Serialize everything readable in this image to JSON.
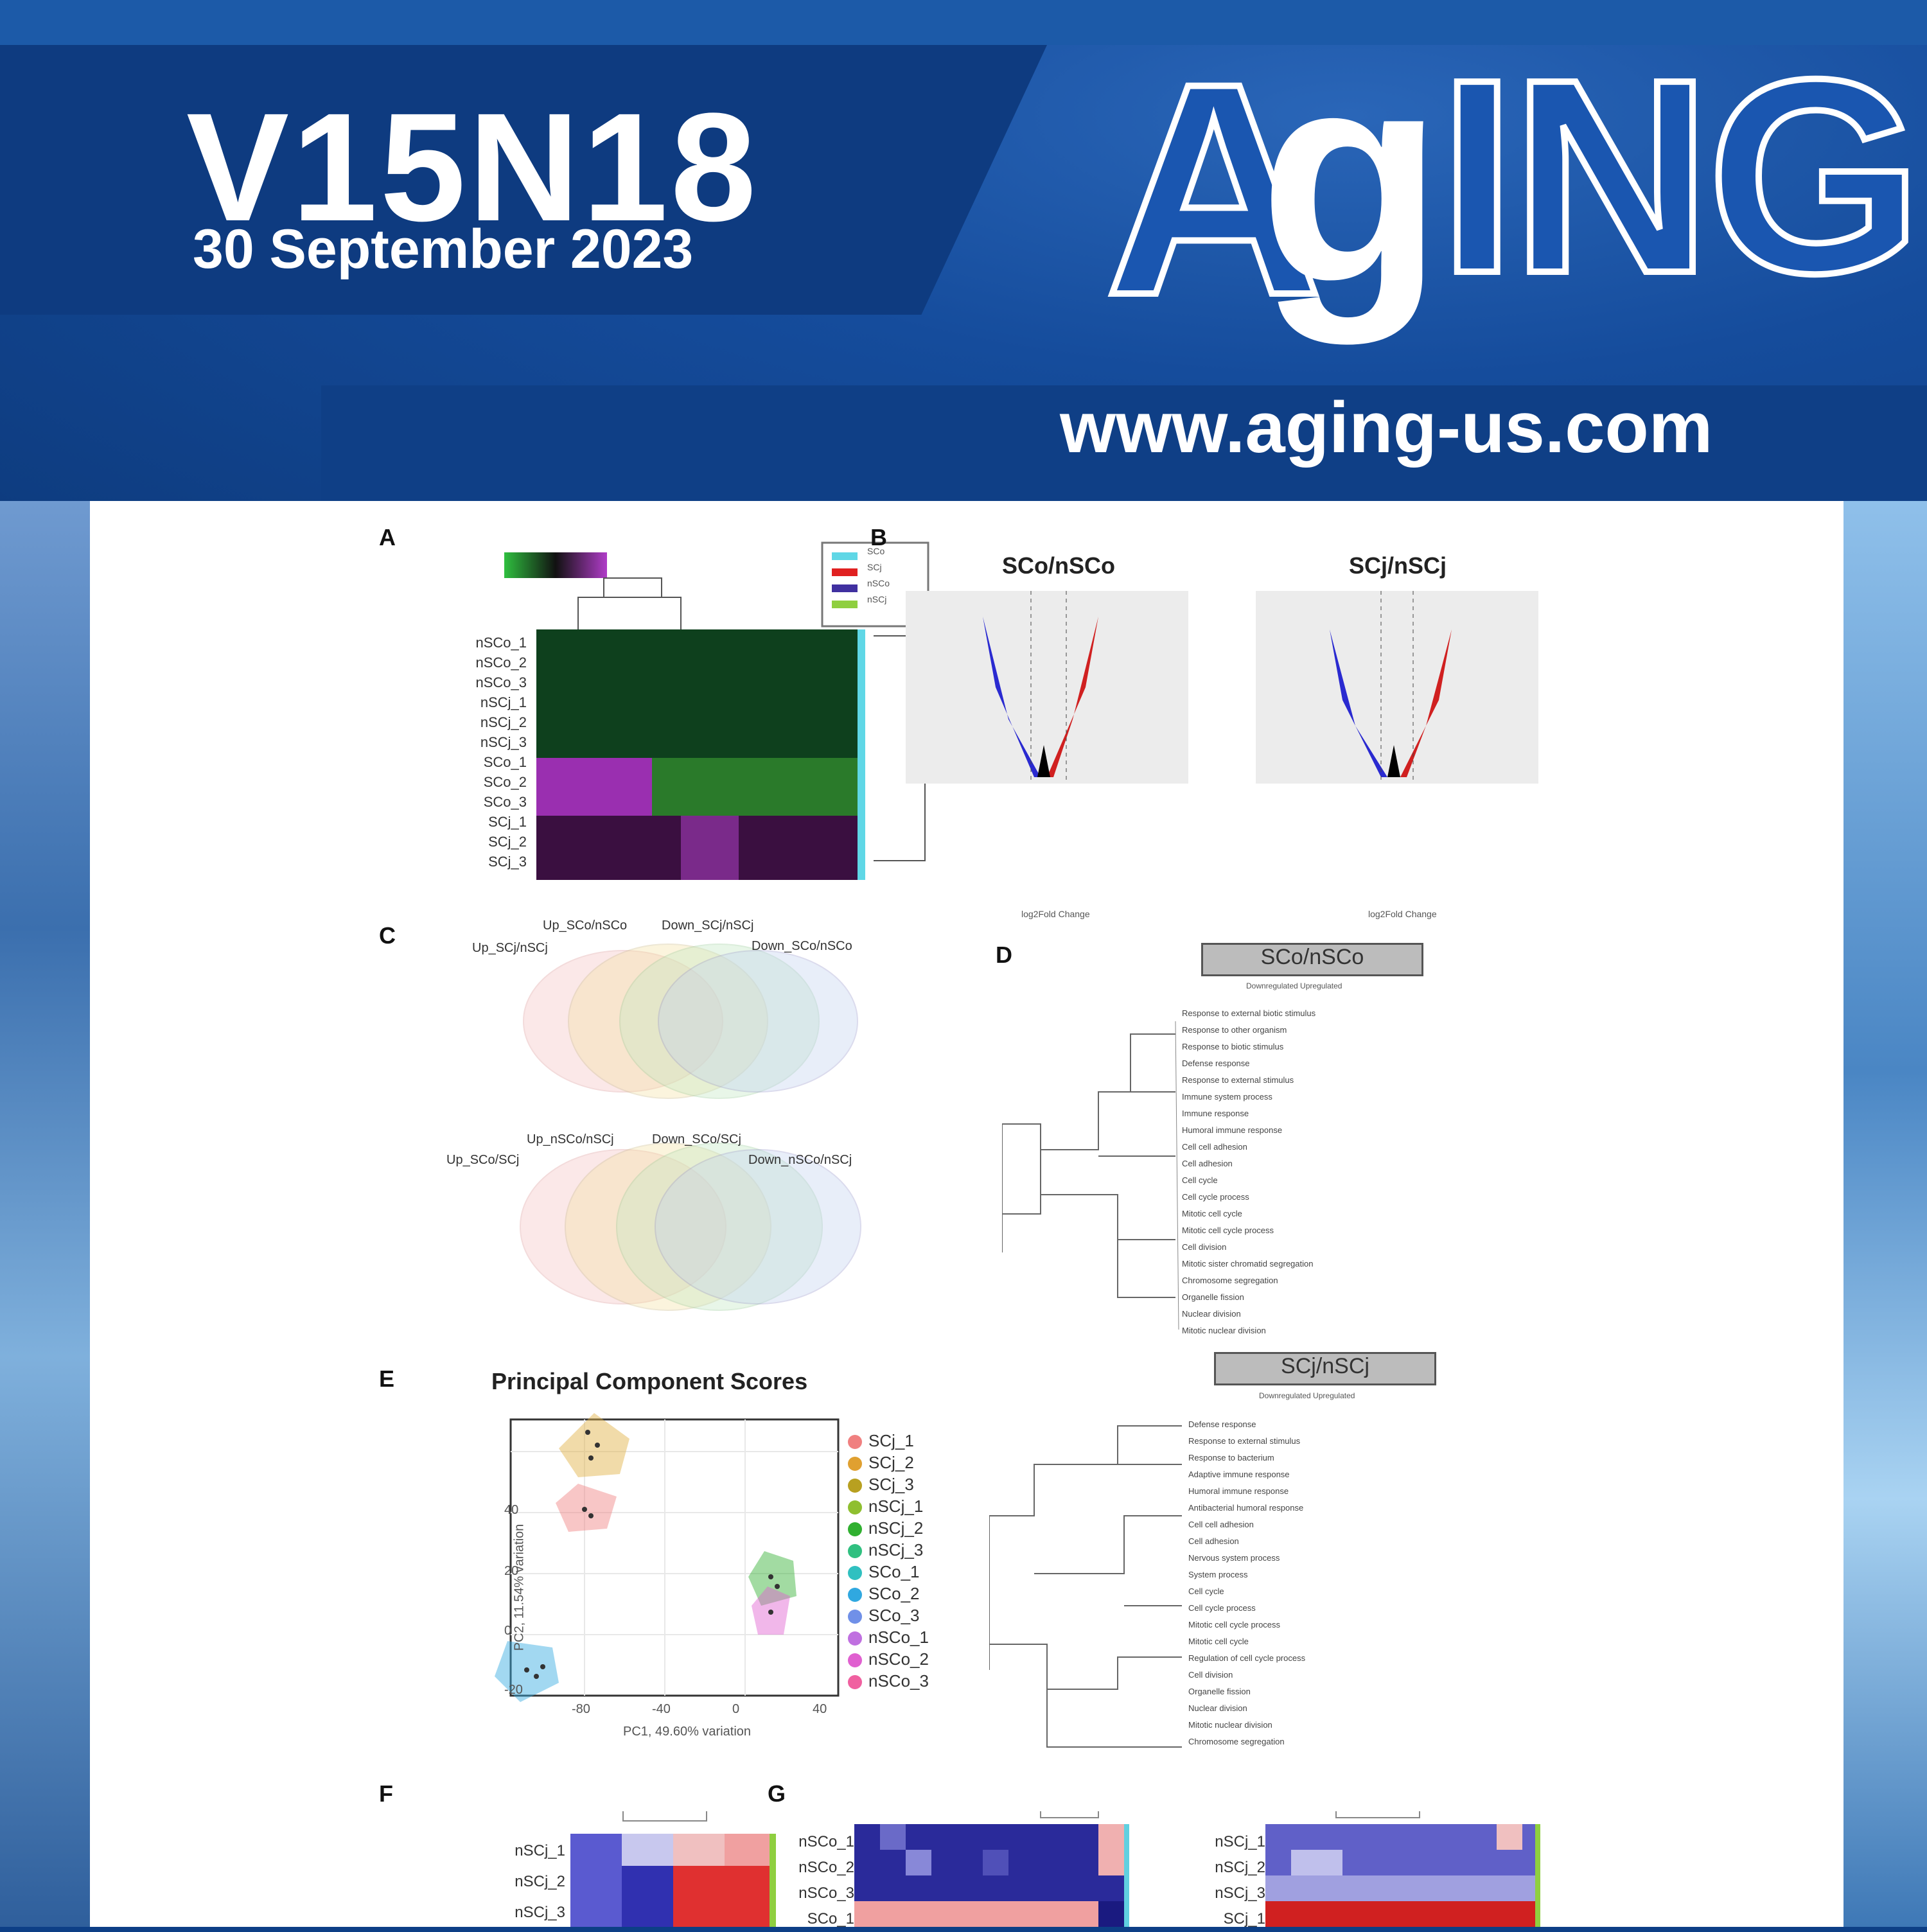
{
  "cover": {
    "volume": "V15N18",
    "date": "30 September 2023",
    "logo_a": "A",
    "logo_g": "g",
    "logo_ing": "ING",
    "url": "www.aging-us.com"
  },
  "colors": {
    "brand_blue": "#1a56b0",
    "dark_blue": "#0e3b80"
  },
  "figure": {
    "panel_labels": [
      "A",
      "B",
      "C",
      "D",
      "E",
      "F",
      "G"
    ],
    "heatmap_a": {
      "rows": [
        "nSCo_1",
        "nSCo_2",
        "nSCo_3",
        "nSCj_1",
        "nSCj_2",
        "nSCj_3",
        "SCo_1",
        "SCo_2",
        "SCo_3",
        "SCj_1",
        "SCj_2",
        "SCj_3"
      ],
      "legend": [
        "SCo",
        "SCj",
        "nSCo",
        "nSCj"
      ]
    },
    "volcano_1_title": "SCo/nSCo",
    "volcano_2_title": "SCj/nSCj",
    "volcano_xlabel": "log2Fold Change",
    "venn_1_labels": [
      "Up_SCo/nSCo",
      "Down_SCj/nSCj",
      "Up_SCj/nSCj",
      "Down_SCo/nSCo"
    ],
    "venn_2_labels": [
      "Up_nSCo/nSCj",
      "Down_SCo/SCj",
      "Up_SCo/SCj",
      "Down_nSCo/nSCj"
    ],
    "go_box_1": "SCo/nSCo",
    "go_box_2": "SCj/nSCj",
    "go_legend": "Downregulated   Upregulated",
    "go_terms_1": [
      "Response to external biotic stimulus",
      "Response to other organism",
      "Response to biotic stimulus",
      "Defense response",
      "Response to external stimulus",
      "Immune system process",
      "Immune response",
      "Humoral immune response",
      "Cell cell adhesion",
      "Cell adhesion",
      "Cell cycle",
      "Cell cycle process",
      "Mitotic cell cycle",
      "Mitotic cell cycle process",
      "Cell division",
      "Mitotic sister chromatid segregation",
      "Chromosome segregation",
      "Organelle fission",
      "Nuclear division",
      "Mitotic nuclear division"
    ],
    "go_terms_2": [
      "Defense response",
      "Response to external stimulus",
      "Response to bacterium",
      "Adaptive immune response",
      "Humoral immune response",
      "Antibacterial humoral response",
      "Cell cell adhesion",
      "Cell adhesion",
      "Nervous system process",
      "System process",
      "Cell cycle",
      "Cell cycle process",
      "Mitotic cell cycle process",
      "Mitotic cell cycle",
      "Regulation of cell cycle process",
      "Cell division",
      "Organelle fission",
      "Nuclear division",
      "Mitotic nuclear division",
      "Chromosome segregation"
    ],
    "pca_title": "Principal Component Scores",
    "pca_legend": [
      "SCj_1",
      "SCj_2",
      "SCj_3",
      "nSCj_1",
      "nSCj_2",
      "nSCj_3",
      "SCo_1",
      "SCo_2",
      "SCo_3",
      "nSCo_1",
      "nSCo_2",
      "nSCo_3"
    ],
    "pca_legend_colors": [
      "#f08080",
      "#e0a030",
      "#b8a020",
      "#8fbf30",
      "#30b030",
      "#30c080",
      "#30c0c0",
      "#30a8e0",
      "#7090e8",
      "#c070e0",
      "#e060d0",
      "#f060a0"
    ],
    "pca_xticks": [
      "-80",
      "-40",
      "0",
      "40"
    ],
    "pca_yticks": [
      "40",
      "20",
      "0",
      "-20"
    ],
    "pca_xlabel": "PC1, 49.60% variation",
    "pca_ylabel": "PC2, 11.54% variation",
    "heatmap_f_rows": [
      "nSCj_1",
      "nSCj_2",
      "nSCj_3"
    ],
    "heatmap_g1_rows": [
      "nSCo_1",
      "nSCo_2",
      "nSCo_3",
      "SCo_1"
    ],
    "heatmap_g2_rows": [
      "nSCj_1",
      "nSCj_2",
      "nSCj_3",
      "SCj_1"
    ]
  }
}
